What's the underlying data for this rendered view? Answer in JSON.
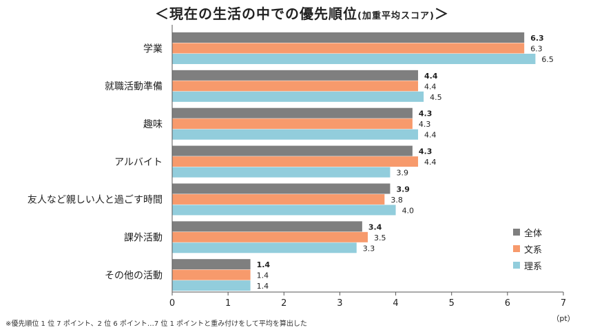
{
  "chart_data": {
    "type": "bar",
    "orientation": "horizontal",
    "title": "＜現在の生活の中での優先順位",
    "title_sub": "(加重平均スコア)",
    "title_end": "＞",
    "categories": [
      "学業",
      "就職活動準備",
      "趣味",
      "アルバイト",
      "友人など親しい人と過ごす時間",
      "課外活動",
      "その他の活動"
    ],
    "series": [
      {
        "name": "全体",
        "color": "#7f7f7f",
        "values": [
          6.3,
          4.4,
          4.3,
          4.3,
          3.9,
          3.4,
          1.4
        ],
        "labels": [
          "6.3",
          "4.4",
          "4.3",
          "4.3",
          "3.9",
          "3.4",
          "1.4"
        ],
        "bold_labels": true
      },
      {
        "name": "文系",
        "color": "#f79a6c",
        "values": [
          6.3,
          4.4,
          4.3,
          4.4,
          3.8,
          3.5,
          1.4
        ],
        "labels": [
          "6.3",
          "4.4",
          "4.3",
          "4.4",
          "3.8",
          "3.5",
          "1.4"
        ],
        "bold_labels": false
      },
      {
        "name": "理系",
        "color": "#92cddc",
        "values": [
          6.5,
          4.5,
          4.4,
          3.9,
          4.0,
          3.3,
          1.4
        ],
        "labels": [
          "6.5",
          "4.5",
          "4.4",
          "3.9",
          "4.0",
          "3.3",
          "1.4"
        ],
        "bold_labels": false
      }
    ],
    "xlim": [
      0,
      7
    ],
    "xticks": [
      "0",
      "1",
      "2",
      "3",
      "4",
      "5",
      "6",
      "7"
    ],
    "xunit": "（pt）",
    "legend_position": "bottom-right",
    "grid": false
  },
  "footnote": "※優先順位 1 位 7 ポイント、2 位 6 ポイント…7 位 1 ポイントと重み付けをして平均を算出した"
}
